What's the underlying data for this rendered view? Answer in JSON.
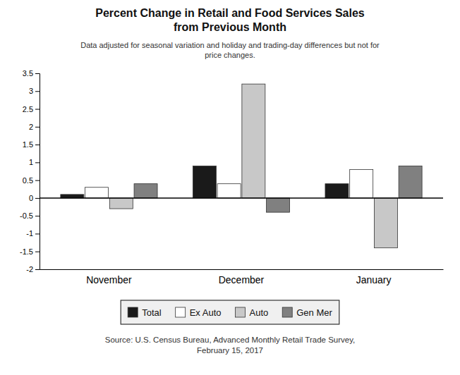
{
  "chart_data": {
    "type": "bar",
    "title": "Percent Change in Retail and Food Services Sales\nfrom Previous Month",
    "subtitle": "Data adjusted for seasonal variation and holiday and trading-day differences but not for\nprice changes.",
    "source": "Source: U.S. Census Bureau, Advanced Monthly Retail Trade Survey,\nFebruary 15, 2017",
    "categories": [
      "November",
      "December",
      "January"
    ],
    "series": [
      {
        "name": "Total",
        "color": "#1a1a1a",
        "values": [
          0.1,
          0.9,
          0.4
        ]
      },
      {
        "name": "Ex Auto",
        "color": "#ffffff",
        "values": [
          0.3,
          0.4,
          0.8
        ]
      },
      {
        "name": "Auto",
        "color": "#c8c8c8",
        "values": [
          -0.3,
          3.2,
          -1.4
        ]
      },
      {
        "name": "Gen Mer",
        "color": "#808080",
        "values": [
          0.4,
          -0.4,
          0.9
        ]
      }
    ],
    "ylim": [
      -2.0,
      3.5
    ],
    "yticks": [
      -2,
      -1.5,
      -1,
      -0.5,
      0,
      0.5,
      1,
      1.5,
      2,
      2.5,
      3,
      3.5
    ],
    "grid": false,
    "legend": "bottom"
  }
}
